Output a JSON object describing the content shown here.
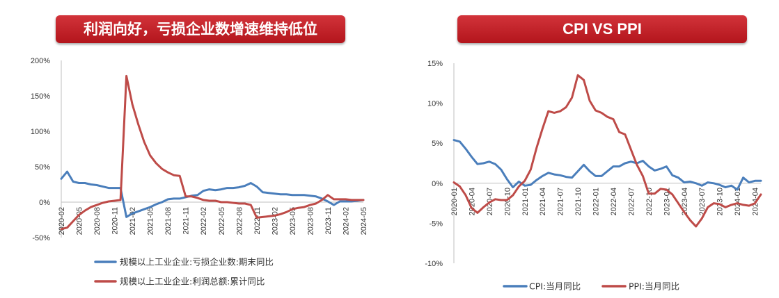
{
  "left_panel": {
    "title": "利润向好，亏损企业数增速维持低位"
  },
  "right_panel": {
    "title": "CPI VS PPI"
  },
  "chart_data": [
    {
      "type": "line",
      "ylim": [
        -50,
        200
      ],
      "yticks": [
        "200%",
        "150%",
        "100%",
        "50%",
        "0%",
        "-50%"
      ],
      "ytick_values": [
        200,
        150,
        100,
        50,
        0,
        -50
      ],
      "xtick_labels": [
        "2020-02",
        "2020-05",
        "2020-08",
        "2020-11",
        "2021-02",
        "2021-05",
        "2021-08",
        "2021-11",
        "2022-02",
        "2022-05",
        "2022-08",
        "2022-11",
        "2023-02",
        "2023-05",
        "2023-08",
        "2023-11",
        "2024-02",
        "2024-05"
      ],
      "n_points": 52,
      "series": [
        {
          "name": "规模以上工业企业:亏损企业数:期末同比",
          "color": "#4a7ebb",
          "values": [
            33,
            43,
            29,
            27,
            27,
            25,
            24,
            22,
            20,
            20,
            20,
            -21,
            -16,
            -13,
            -10,
            -7,
            -3,
            0,
            4,
            5,
            5,
            7,
            9,
            10,
            16,
            18,
            17,
            18,
            20,
            20,
            21,
            23,
            27,
            22,
            14,
            13,
            12,
            11,
            11,
            10,
            10,
            10,
            9,
            8,
            5,
            1,
            -4,
            1,
            1,
            1,
            2,
            3
          ]
        },
        {
          "name": "规模以上工业企业:利润总额:累计同比",
          "color": "#be4b48",
          "values": [
            -38,
            -36,
            -27,
            -18,
            -12,
            -7,
            -4,
            -1,
            1,
            2,
            3,
            178,
            138,
            110,
            85,
            66,
            55,
            47,
            42,
            38,
            37,
            8,
            8,
            6,
            3,
            2,
            2,
            0,
            0,
            -1,
            -2,
            -2,
            -4,
            -22,
            -21,
            -20,
            -19,
            -17,
            -14,
            -10,
            -8,
            -7,
            -4,
            -2,
            3,
            10,
            4,
            4,
            4,
            3,
            3,
            3
          ]
        }
      ]
    },
    {
      "type": "line",
      "ylim": [
        -10,
        15
      ],
      "yticks": [
        "15%",
        "10%",
        "5%",
        "0%",
        "-5%",
        "-10%"
      ],
      "ytick_values": [
        15,
        10,
        5,
        0,
        -5,
        -10
      ],
      "xtick_labels": [
        "2020-01",
        "2020-04",
        "2020-07",
        "2020-10",
        "2021-01",
        "2021-04",
        "2021-07",
        "2021-10",
        "2022-01",
        "2022-04",
        "2022-07",
        "2022-10",
        "2023-01",
        "2023-04",
        "2023-07",
        "2023-10",
        "2024-01",
        "2024-04"
      ],
      "n_points": 53,
      "series": [
        {
          "name": "CPI:当月同比",
          "color": "#4a7ebb",
          "values": [
            5.4,
            5.2,
            4.3,
            3.3,
            2.4,
            2.5,
            2.7,
            2.4,
            1.7,
            0.5,
            -0.5,
            0.2,
            -0.3,
            -0.2,
            0.4,
            0.9,
            1.3,
            1.1,
            1.0,
            0.8,
            0.7,
            1.5,
            2.3,
            1.5,
            0.9,
            0.9,
            1.5,
            2.1,
            2.1,
            2.5,
            2.7,
            2.5,
            2.8,
            2.1,
            1.6,
            1.8,
            2.1,
            1.0,
            0.7,
            0.1,
            0.2,
            0.0,
            -0.3,
            0.1,
            0.0,
            -0.2,
            -0.5,
            -0.3,
            -0.8,
            0.7,
            0.1,
            0.3,
            0.3
          ]
        },
        {
          "name": "PPI:当月同比",
          "color": "#be4b48",
          "values": [
            0.1,
            -0.4,
            -1.5,
            -3.1,
            -3.7,
            -3.0,
            -2.4,
            -2.0,
            -2.1,
            -2.1,
            -1.5,
            -0.4,
            0.3,
            1.7,
            4.4,
            6.8,
            9.0,
            8.8,
            9.0,
            9.5,
            10.7,
            13.5,
            12.9,
            10.3,
            9.1,
            8.8,
            8.3,
            8.0,
            6.4,
            6.1,
            4.2,
            2.3,
            0.9,
            -1.3,
            -1.3,
            -0.7,
            -0.8,
            -1.4,
            -2.5,
            -3.6,
            -4.6,
            -5.4,
            -4.4,
            -3.0,
            -2.5,
            -2.6,
            -3.0,
            -2.7,
            -2.5,
            -2.7,
            -2.8,
            -2.5,
            -1.4
          ]
        }
      ]
    }
  ]
}
